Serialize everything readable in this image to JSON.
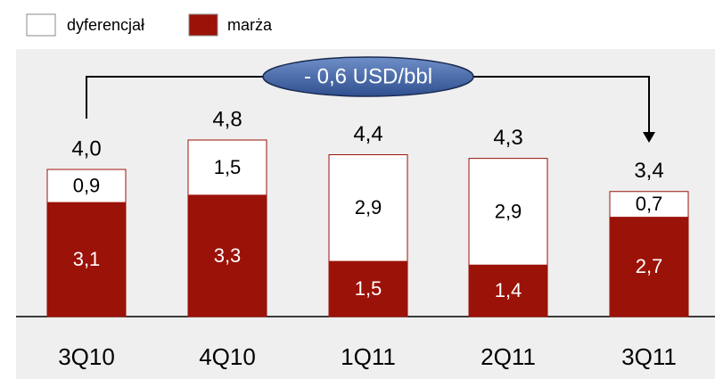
{
  "chart_data": {
    "type": "stacked_bar",
    "categories": [
      "3Q10",
      "4Q10",
      "1Q11",
      "2Q11",
      "3Q11"
    ],
    "series": [
      {
        "name": "marża",
        "color": "#9b1208",
        "values": [
          3.1,
          3.3,
          1.5,
          1.4,
          2.7
        ],
        "value_labels": [
          "3,1",
          "3,3",
          "1,5",
          "1,4",
          "2,7"
        ]
      },
      {
        "name": "dyferencjał",
        "color": "#ffffff",
        "values": [
          0.9,
          1.5,
          2.9,
          2.9,
          0.7
        ],
        "value_labels": [
          "0,9",
          "1,5",
          "2,9",
          "2,9",
          "0,7"
        ]
      }
    ],
    "totals": {
      "values": [
        4.0,
        4.8,
        4.4,
        4.3,
        3.4
      ],
      "value_labels": [
        "4,0",
        "4,8",
        "4,4",
        "4,3",
        "3,4"
      ]
    },
    "annotation": "- 0,6 USD/bbl"
  }
}
